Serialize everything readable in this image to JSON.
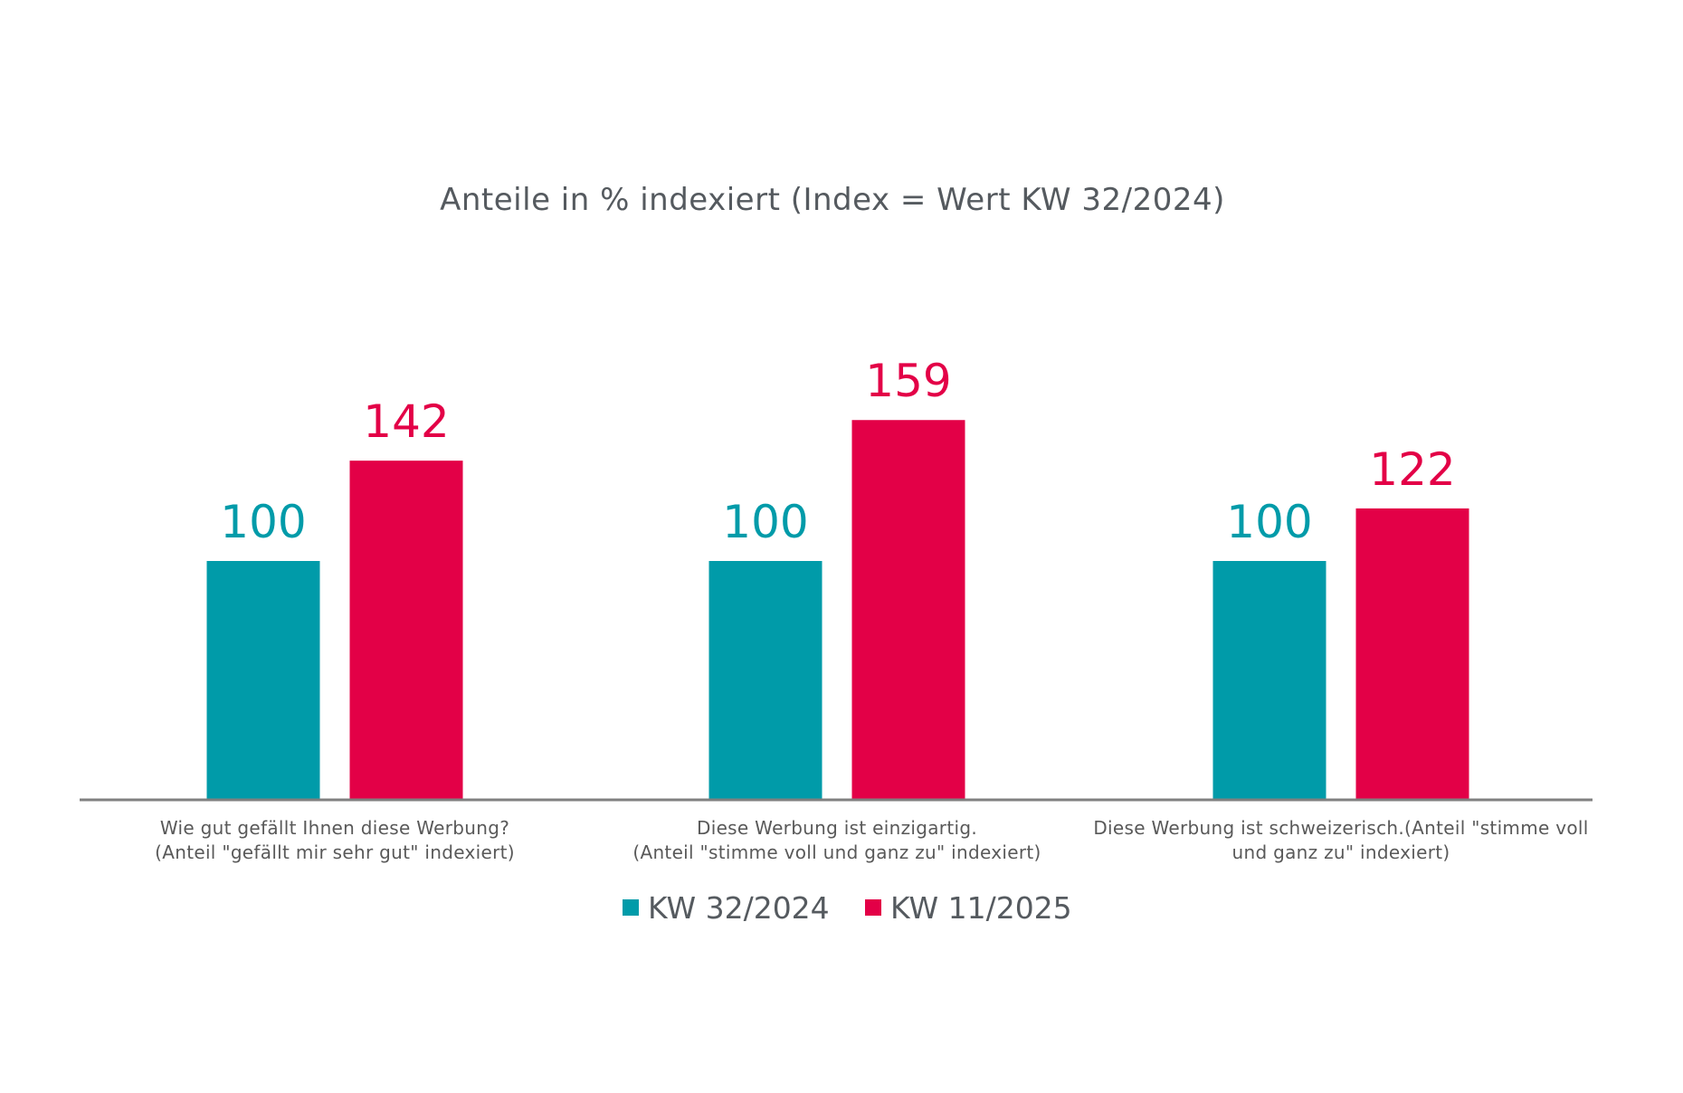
{
  "chart_data": {
    "type": "bar",
    "title": "Anteile in % indexiert (Index = Wert KW 32/2024)",
    "categories": [
      [
        "Wie gut gefällt Ihnen diese Werbung?",
        "(Anteil \"gefällt mir sehr gut\" indexiert)"
      ],
      [
        "Diese Werbung ist einzigartig.",
        "(Anteil \"stimme voll und ganz zu\" indexiert)"
      ],
      [
        "Diese Werbung ist schweizerisch.(Anteil \"stimme voll",
        "und ganz zu\" indexiert)"
      ]
    ],
    "series": [
      {
        "name": "KW 32/2024",
        "color": "#009ba9",
        "values": [
          100,
          100,
          100
        ]
      },
      {
        "name": "KW 11/2025",
        "color": "#e30047",
        "values": [
          142,
          159,
          122
        ]
      }
    ],
    "ylim": [
      0,
      180
    ],
    "grid": false,
    "legend_position": "bottom-center",
    "data_labels": true,
    "axis_color": "#808080"
  }
}
